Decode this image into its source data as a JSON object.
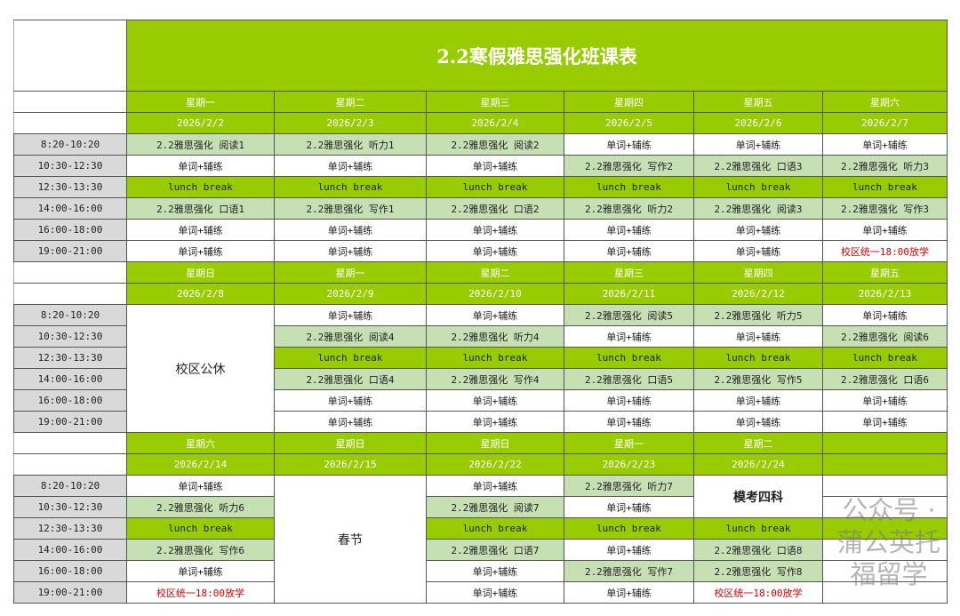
{
  "title": "2.2寒假雅思强化班课表",
  "times": [
    "8:20-10:20",
    "10:30-12:30",
    "12:30-13:30",
    "14:00-16:00",
    "16:00-18:00",
    "19:00-21:00"
  ],
  "blocks": [
    {
      "days": [
        "星期一",
        "星期二",
        "星期三",
        "星期四",
        "星期五",
        "星期六"
      ],
      "dates": [
        "2026/2/2",
        "2026/2/3",
        "2026/2/4",
        "2026/2/5",
        "2026/2/6",
        "2026/2/7"
      ],
      "rows": [
        [
          {
            "t": "2.2雅思强化 阅读1",
            "k": "c"
          },
          {
            "t": "2.2雅思强化 听力1",
            "k": "c"
          },
          {
            "t": "2.2雅思强化 阅读2",
            "k": "c"
          },
          {
            "t": "单词+辅练",
            "k": "s"
          },
          {
            "t": "单词+辅练",
            "k": "s"
          },
          {
            "t": "单词+辅练",
            "k": "s"
          }
        ],
        [
          {
            "t": "单词+辅练",
            "k": "s"
          },
          {
            "t": "单词+辅练",
            "k": "s"
          },
          {
            "t": "单词+辅练",
            "k": "s"
          },
          {
            "t": "2.2雅思强化 写作2",
            "k": "c"
          },
          {
            "t": "2.2雅思强化 口语3",
            "k": "c"
          },
          {
            "t": "2.2雅思强化 听力3",
            "k": "c"
          }
        ],
        [
          {
            "t": "lunch break",
            "k": "l"
          },
          {
            "t": "lunch break",
            "k": "l"
          },
          {
            "t": "lunch break",
            "k": "l"
          },
          {
            "t": "lunch break",
            "k": "l"
          },
          {
            "t": "lunch break",
            "k": "l"
          },
          {
            "t": "lunch break",
            "k": "l"
          }
        ],
        [
          {
            "t": "2.2雅思强化 口语1",
            "k": "c"
          },
          {
            "t": "2.2雅思强化 写作1",
            "k": "c"
          },
          {
            "t": "2.2雅思强化 口语2",
            "k": "c"
          },
          {
            "t": "2.2雅思强化 听力2",
            "k": "c"
          },
          {
            "t": "2.2雅思强化 阅读3",
            "k": "c"
          },
          {
            "t": "2.2雅思强化 写作3",
            "k": "c"
          }
        ],
        [
          {
            "t": "单词+辅练",
            "k": "s"
          },
          {
            "t": "单词+辅练",
            "k": "s"
          },
          {
            "t": "单词+辅练",
            "k": "s"
          },
          {
            "t": "单词+辅练",
            "k": "s"
          },
          {
            "t": "单词+辅练",
            "k": "s"
          },
          {
            "t": "单词+辅练",
            "k": "s"
          }
        ],
        [
          {
            "t": "单词+辅练",
            "k": "s"
          },
          {
            "t": "单词+辅练",
            "k": "s"
          },
          {
            "t": "单词+辅练",
            "k": "s"
          },
          {
            "t": "单词+辅练",
            "k": "s"
          },
          {
            "t": "单词+辅练",
            "k": "s"
          },
          {
            "t": "校区统一18:00放学",
            "k": "n"
          }
        ]
      ]
    },
    {
      "days": [
        "星期日",
        "星期一",
        "星期二",
        "星期三",
        "星期四",
        "星期五"
      ],
      "dates": [
        "2026/2/8",
        "2026/2/9",
        "2026/2/10",
        "2026/2/11",
        "2026/2/12",
        "2026/2/13"
      ],
      "rows": [
        [
          {
            "t": "校区公休",
            "k": "m"
          },
          {
            "t": "单词+辅练",
            "k": "s"
          },
          {
            "t": "单词+辅练",
            "k": "s"
          },
          {
            "t": "2.2雅思强化 阅读5",
            "k": "c"
          },
          {
            "t": "2.2雅思强化 听力5",
            "k": "c"
          },
          {
            "t": "单词+辅练",
            "k": "s"
          }
        ],
        [
          null,
          {
            "t": "2.2雅思强化 阅读4",
            "k": "c"
          },
          {
            "t": "2.2雅思强化 听力4",
            "k": "c"
          },
          {
            "t": "单词+辅练",
            "k": "s"
          },
          {
            "t": "单词+辅练",
            "k": "s"
          },
          {
            "t": "2.2雅思强化 阅读6",
            "k": "c"
          }
        ],
        [
          null,
          {
            "t": "lunch break",
            "k": "l"
          },
          {
            "t": "lunch break",
            "k": "l"
          },
          {
            "t": "lunch break",
            "k": "l"
          },
          {
            "t": "lunch break",
            "k": "l"
          },
          {
            "t": "lunch break",
            "k": "l"
          }
        ],
        [
          null,
          {
            "t": "2.2雅思强化 口语4",
            "k": "c"
          },
          {
            "t": "2.2雅思强化 写作4",
            "k": "c"
          },
          {
            "t": "2.2雅思强化 口语5",
            "k": "c"
          },
          {
            "t": "2.2雅思强化 写作5",
            "k": "c"
          },
          {
            "t": "2.2雅思强化 口语6",
            "k": "c"
          }
        ],
        [
          null,
          {
            "t": "单词+辅练",
            "k": "s"
          },
          {
            "t": "单词+辅练",
            "k": "s"
          },
          {
            "t": "单词+辅练",
            "k": "s"
          },
          {
            "t": "单词+辅练",
            "k": "s"
          },
          {
            "t": "单词+辅练",
            "k": "s"
          }
        ],
        [
          null,
          {
            "t": "单词+辅练",
            "k": "s"
          },
          {
            "t": "单词+辅练",
            "k": "s"
          },
          {
            "t": "单词+辅练",
            "k": "s"
          },
          {
            "t": "单词+辅练",
            "k": "s"
          },
          {
            "t": "单词+辅练",
            "k": "s"
          }
        ]
      ]
    },
    {
      "days": [
        "星期六",
        "星期日",
        "星期日",
        "星期一",
        "星期二",
        ""
      ],
      "dates": [
        "2026/2/14",
        "2026/2/15",
        "2026/2/22",
        "2026/2/23",
        "2026/2/24",
        ""
      ],
      "rows": [
        [
          {
            "t": "单词+辅练",
            "k": "s"
          },
          {
            "t": "春节",
            "k": "m"
          },
          {
            "t": "单词+辅练",
            "k": "s"
          },
          {
            "t": "2.2雅思强化 听力7",
            "k": "c"
          },
          {
            "t": "模考四科",
            "k": "mb"
          },
          {
            "t": "",
            "k": "e"
          }
        ],
        [
          {
            "t": "2.2雅思强化 听力6",
            "k": "c"
          },
          null,
          {
            "t": "2.2雅思强化 阅读7",
            "k": "c"
          },
          {
            "t": "单词+辅练",
            "k": "s"
          },
          null,
          {
            "t": "",
            "k": "e"
          }
        ],
        [
          {
            "t": "lunch break",
            "k": "l"
          },
          null,
          {
            "t": "lunch break",
            "k": "l"
          },
          {
            "t": "lunch break",
            "k": "l"
          },
          {
            "t": "lunch break",
            "k": "l"
          },
          {
            "t": "",
            "k": "l"
          }
        ],
        [
          {
            "t": "2.2雅思强化 写作6",
            "k": "c"
          },
          null,
          {
            "t": "2.2雅思强化 口语7",
            "k": "c"
          },
          {
            "t": "单词+辅练",
            "k": "s"
          },
          {
            "t": "2.2雅思强化 口语8",
            "k": "c"
          },
          {
            "t": "",
            "k": "e"
          }
        ],
        [
          {
            "t": "单词+辅练",
            "k": "s"
          },
          null,
          {
            "t": "单词+辅练",
            "k": "s"
          },
          {
            "t": "2.2雅思强化 写作7",
            "k": "c"
          },
          {
            "t": "2.2雅思强化 写作8",
            "k": "c"
          },
          {
            "t": "",
            "k": "e"
          }
        ],
        [
          {
            "t": "校区统一18:00放学",
            "k": "n"
          },
          null,
          {
            "t": "单词+辅练",
            "k": "s"
          },
          {
            "t": "单词+辅练",
            "k": "s"
          },
          {
            "t": "校区统一18:00放学",
            "k": "n"
          },
          {
            "t": "",
            "k": "e"
          }
        ]
      ]
    }
  ],
  "watermark": "公众号 · 蒲公英托福留学"
}
